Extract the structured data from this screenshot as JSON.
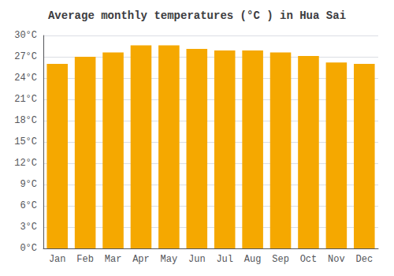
{
  "chart_data": {
    "type": "bar",
    "title": "Average monthly temperatures (°C ) in Hua Sai",
    "categories": [
      "Jan",
      "Feb",
      "Mar",
      "Apr",
      "May",
      "Jun",
      "Jul",
      "Aug",
      "Sep",
      "Oct",
      "Nov",
      "Dec"
    ],
    "values": [
      26.0,
      27.0,
      27.6,
      28.6,
      28.6,
      28.1,
      27.9,
      27.9,
      27.6,
      27.1,
      26.2,
      26.0
    ],
    "color": "#F5A800",
    "ylim": [
      0,
      30
    ],
    "yticks": [
      {
        "value": 0,
        "label": "0°C"
      },
      {
        "value": 3,
        "label": "3°C"
      },
      {
        "value": 6,
        "label": "6°C"
      },
      {
        "value": 9,
        "label": "9°C"
      },
      {
        "value": 12,
        "label": "12°C"
      },
      {
        "value": 15,
        "label": "15°C"
      },
      {
        "value": 18,
        "label": "18°C"
      },
      {
        "value": 21,
        "label": "21°C"
      },
      {
        "value": 24,
        "label": "24°C"
      },
      {
        "value": 27,
        "label": "27°C"
      },
      {
        "value": 30,
        "label": "30°C"
      }
    ],
    "grid": true
  }
}
